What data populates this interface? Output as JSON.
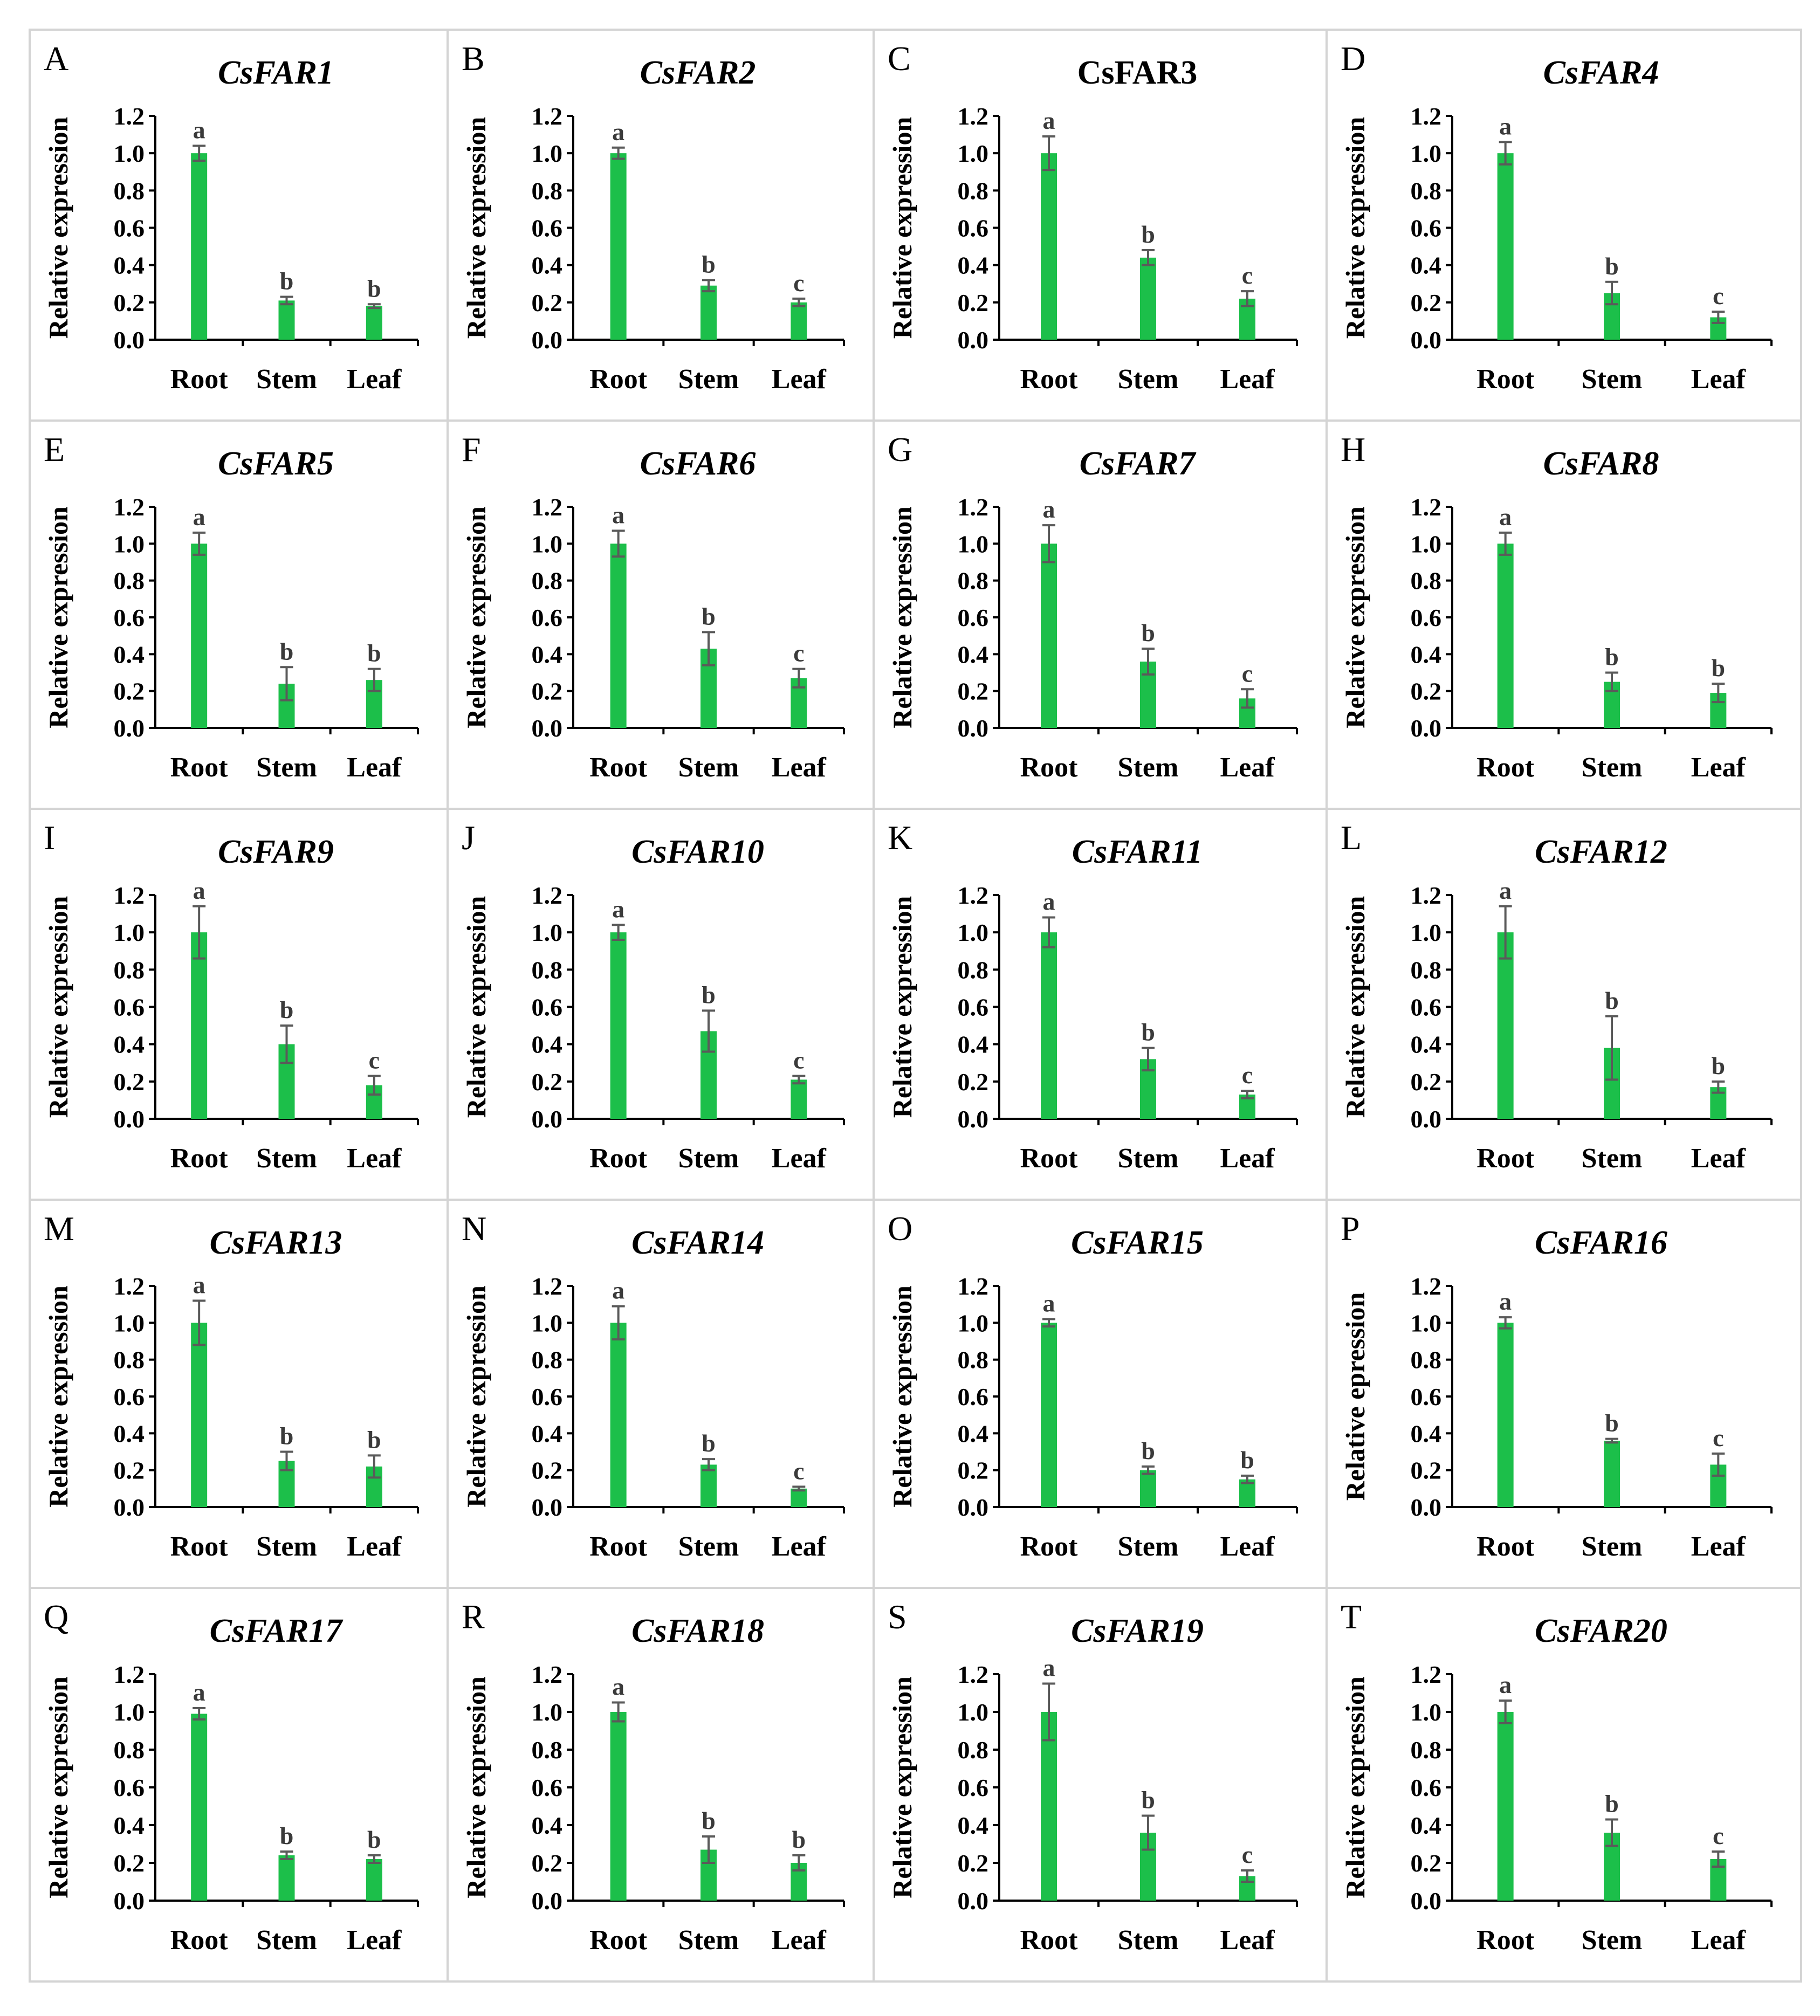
{
  "categories": [
    "Root",
    "Stem",
    "Leaf"
  ],
  "ylabel_default": "Relative  expression",
  "colors": {
    "bar": "#1cbf4a",
    "error": "#5a5a5a",
    "axis": "#000000",
    "border": "#d4d4d4"
  },
  "yticks": [
    "0.0",
    "0.2",
    "0.4",
    "0.6",
    "0.8",
    "1.0",
    "1.2"
  ],
  "chart_data": [
    {
      "letter": "A",
      "title": "CsFAR1",
      "type": "bar",
      "ylim": [
        0,
        1.2
      ],
      "values": [
        1.0,
        0.21,
        0.18
      ],
      "errors": [
        0.04,
        0.02,
        0.01
      ],
      "sig": [
        "a",
        "b",
        "b"
      ]
    },
    {
      "letter": "B",
      "title": "CsFAR2",
      "type": "bar",
      "ylim": [
        0,
        1.2
      ],
      "values": [
        1.0,
        0.29,
        0.2
      ],
      "errors": [
        0.03,
        0.03,
        0.02
      ],
      "sig": [
        "a",
        "b",
        "c"
      ]
    },
    {
      "letter": "C",
      "title": "CsFAR3",
      "type": "bar",
      "ylim": [
        0,
        1.2
      ],
      "values": [
        1.0,
        0.44,
        0.22
      ],
      "errors": [
        0.09,
        0.04,
        0.04
      ],
      "sig": [
        "a",
        "b",
        "c"
      ],
      "upright": true
    },
    {
      "letter": "D",
      "title": "CsFAR4",
      "type": "bar",
      "ylim": [
        0,
        1.2
      ],
      "values": [
        1.0,
        0.25,
        0.12
      ],
      "errors": [
        0.06,
        0.06,
        0.03
      ],
      "sig": [
        "a",
        "b",
        "c"
      ]
    },
    {
      "letter": "E",
      "title": "CsFAR5",
      "type": "bar",
      "ylim": [
        0,
        1.2
      ],
      "values": [
        1.0,
        0.24,
        0.26
      ],
      "errors": [
        0.06,
        0.09,
        0.06
      ],
      "sig": [
        "a",
        "b",
        "b"
      ]
    },
    {
      "letter": "F",
      "title": "CsFAR6",
      "type": "bar",
      "ylim": [
        0,
        1.2
      ],
      "values": [
        1.0,
        0.43,
        0.27
      ],
      "errors": [
        0.07,
        0.09,
        0.05
      ],
      "sig": [
        "a",
        "b",
        "c"
      ]
    },
    {
      "letter": "G",
      "title": "CsFAR7",
      "type": "bar",
      "ylim": [
        0,
        1.2
      ],
      "values": [
        1.0,
        0.36,
        0.16
      ],
      "errors": [
        0.1,
        0.07,
        0.05
      ],
      "sig": [
        "a",
        "b",
        "c"
      ]
    },
    {
      "letter": "H",
      "title": "CsFAR8",
      "type": "bar",
      "ylim": [
        0,
        1.2
      ],
      "values": [
        1.0,
        0.25,
        0.19
      ],
      "errors": [
        0.06,
        0.05,
        0.05
      ],
      "sig": [
        "a",
        "b",
        "b"
      ]
    },
    {
      "letter": "I",
      "title": "CsFAR9",
      "type": "bar",
      "ylim": [
        0,
        1.2
      ],
      "values": [
        1.0,
        0.4,
        0.18
      ],
      "errors": [
        0.14,
        0.1,
        0.05
      ],
      "sig": [
        "a",
        "b",
        "c"
      ]
    },
    {
      "letter": "J",
      "title": "CsFAR10",
      "type": "bar",
      "ylim": [
        0,
        1.2
      ],
      "values": [
        1.0,
        0.47,
        0.21
      ],
      "errors": [
        0.04,
        0.11,
        0.02
      ],
      "sig": [
        "a",
        "b",
        "c"
      ]
    },
    {
      "letter": "K",
      "title": "CsFAR11",
      "type": "bar",
      "ylim": [
        0,
        1.2
      ],
      "values": [
        1.0,
        0.32,
        0.13
      ],
      "errors": [
        0.08,
        0.06,
        0.02
      ],
      "sig": [
        "a",
        "b",
        "c"
      ]
    },
    {
      "letter": "L",
      "title": "CsFAR12",
      "type": "bar",
      "ylim": [
        0,
        1.2
      ],
      "values": [
        1.0,
        0.38,
        0.17
      ],
      "errors": [
        0.14,
        0.17,
        0.03
      ],
      "sig": [
        "a",
        "b",
        "b"
      ]
    },
    {
      "letter": "M",
      "title": "CsFAR13",
      "type": "bar",
      "ylim": [
        0,
        1.2
      ],
      "values": [
        1.0,
        0.25,
        0.22
      ],
      "errors": [
        0.12,
        0.05,
        0.06
      ],
      "sig": [
        "a",
        "b",
        "b"
      ]
    },
    {
      "letter": "N",
      "title": "CsFAR14",
      "type": "bar",
      "ylim": [
        0,
        1.2
      ],
      "values": [
        1.0,
        0.23,
        0.1
      ],
      "errors": [
        0.09,
        0.03,
        0.01
      ],
      "sig": [
        "a",
        "b",
        "c"
      ]
    },
    {
      "letter": "O",
      "title": "CsFAR15",
      "type": "bar",
      "ylim": [
        0,
        1.2
      ],
      "values": [
        1.0,
        0.2,
        0.15
      ],
      "errors": [
        0.02,
        0.02,
        0.02
      ],
      "sig": [
        "a",
        "b",
        "b"
      ]
    },
    {
      "letter": "P",
      "title": "CsFAR16",
      "type": "bar",
      "ylim": [
        0,
        1.2
      ],
      "values": [
        1.0,
        0.36,
        0.23
      ],
      "errors": [
        0.03,
        0.01,
        0.06
      ],
      "sig": [
        "a",
        "b",
        "c"
      ],
      "ylabel": "Relative  epression"
    },
    {
      "letter": "Q",
      "title": "CsFAR17",
      "type": "bar",
      "ylim": [
        0,
        1.2
      ],
      "values": [
        0.99,
        0.24,
        0.22
      ],
      "errors": [
        0.03,
        0.02,
        0.02
      ],
      "sig": [
        "a",
        "b",
        "b"
      ],
      "ylabel": "Relative expression"
    },
    {
      "letter": "R",
      "title": "CsFAR18",
      "type": "bar",
      "ylim": [
        0,
        1.2
      ],
      "values": [
        1.0,
        0.27,
        0.2
      ],
      "errors": [
        0.05,
        0.07,
        0.04
      ],
      "sig": [
        "a",
        "b",
        "b"
      ]
    },
    {
      "letter": "S",
      "title": "CsFAR19",
      "type": "bar",
      "ylim": [
        0,
        1.2
      ],
      "values": [
        1.0,
        0.36,
        0.13
      ],
      "errors": [
        0.15,
        0.09,
        0.03
      ],
      "sig": [
        "a",
        "b",
        "c"
      ]
    },
    {
      "letter": "T",
      "title": "CsFAR20",
      "type": "bar",
      "ylim": [
        0,
        1.2
      ],
      "values": [
        1.0,
        0.36,
        0.22
      ],
      "errors": [
        0.06,
        0.07,
        0.04
      ],
      "sig": [
        "a",
        "b",
        "c"
      ]
    }
  ]
}
